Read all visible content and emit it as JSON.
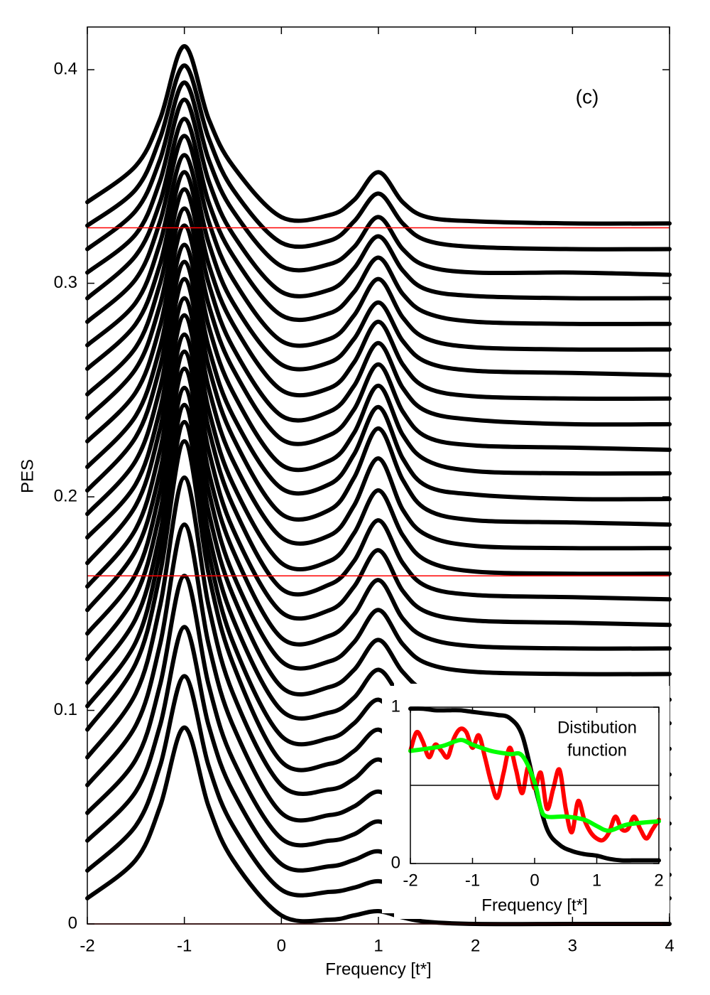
{
  "chart_data": [
    {
      "type": "line",
      "xlabel": "Frequency [t*]",
      "ylabel": "PES",
      "annotation": "(c)",
      "xlim": [
        -2,
        4
      ],
      "ylim": [
        0,
        0.42
      ],
      "xticks": [
        -2,
        -1,
        0,
        1,
        2,
        3,
        4
      ],
      "yticks": [
        0,
        0.1,
        0.2,
        0.3,
        0.4
      ],
      "color": "#000000",
      "hlines": [
        0,
        0.163,
        0.326
      ],
      "hline_color": "#ff0000",
      "x": [
        -2,
        -1.5,
        -1.25,
        -1,
        -0.75,
        -0.5,
        0,
        0.5,
        0.75,
        1,
        1.25,
        1.5,
        2,
        3,
        4
      ],
      "series": [
        {
          "values": [
            0.012,
            0.03,
            0.055,
            0.092,
            0.055,
            0.03,
            0.004,
            0.002,
            0.004,
            0.006,
            0.003,
            0.001,
            0,
            0,
            0
          ]
        },
        {
          "values": [
            0.025,
            0.046,
            0.074,
            0.116,
            0.074,
            0.046,
            0.016,
            0.015,
            0.017,
            0.02,
            0.016,
            0.013,
            0.012,
            0.012,
            0.012
          ]
        },
        {
          "values": [
            0.039,
            0.062,
            0.093,
            0.139,
            0.093,
            0.062,
            0.028,
            0.027,
            0.03,
            0.034,
            0.028,
            0.025,
            0.024,
            0.023,
            0.023
          ]
        },
        {
          "values": [
            0.052,
            0.077,
            0.112,
            0.163,
            0.112,
            0.077,
            0.04,
            0.039,
            0.042,
            0.048,
            0.041,
            0.037,
            0.036,
            0.035,
            0.035
          ]
        },
        {
          "values": [
            0.065,
            0.093,
            0.131,
            0.187,
            0.131,
            0.093,
            0.052,
            0.051,
            0.055,
            0.062,
            0.054,
            0.049,
            0.047,
            0.047,
            0.047
          ]
        },
        {
          "values": [
            0.078,
            0.108,
            0.149,
            0.209,
            0.149,
            0.108,
            0.065,
            0.063,
            0.068,
            0.077,
            0.067,
            0.061,
            0.059,
            0.059,
            0.059
          ]
        },
        {
          "values": [
            0.091,
            0.122,
            0.164,
            0.226,
            0.164,
            0.122,
            0.076,
            0.075,
            0.081,
            0.091,
            0.079,
            0.073,
            0.071,
            0.07,
            0.07
          ]
        },
        {
          "values": [
            0.102,
            0.132,
            0.174,
            0.235,
            0.174,
            0.132,
            0.088,
            0.087,
            0.094,
            0.105,
            0.092,
            0.085,
            0.083,
            0.082,
            0.082
          ]
        },
        {
          "values": [
            0.113,
            0.143,
            0.183,
            0.243,
            0.183,
            0.143,
            0.1,
            0.099,
            0.106,
            0.119,
            0.105,
            0.097,
            0.095,
            0.094,
            0.094
          ]
        },
        {
          "values": [
            0.124,
            0.154,
            0.193,
            0.251,
            0.193,
            0.154,
            0.111,
            0.111,
            0.119,
            0.133,
            0.118,
            0.109,
            0.106,
            0.106,
            0.105
          ]
        },
        {
          "values": [
            0.136,
            0.164,
            0.203,
            0.26,
            0.203,
            0.164,
            0.123,
            0.123,
            0.132,
            0.147,
            0.131,
            0.122,
            0.118,
            0.117,
            0.117
          ]
        },
        {
          "values": [
            0.147,
            0.175,
            0.212,
            0.268,
            0.212,
            0.175,
            0.134,
            0.135,
            0.145,
            0.161,
            0.143,
            0.134,
            0.13,
            0.129,
            0.129
          ]
        },
        {
          "values": [
            0.158,
            0.185,
            0.222,
            0.276,
            0.222,
            0.185,
            0.146,
            0.147,
            0.158,
            0.175,
            0.156,
            0.146,
            0.142,
            0.141,
            0.14
          ]
        },
        {
          "values": [
            0.169,
            0.196,
            0.232,
            0.285,
            0.232,
            0.196,
            0.157,
            0.159,
            0.17,
            0.189,
            0.169,
            0.158,
            0.154,
            0.153,
            0.152
          ]
        },
        {
          "values": [
            0.181,
            0.206,
            0.241,
            0.293,
            0.241,
            0.206,
            0.169,
            0.17,
            0.183,
            0.203,
            0.182,
            0.17,
            0.165,
            0.164,
            0.164
          ]
        },
        {
          "values": [
            0.192,
            0.217,
            0.251,
            0.302,
            0.251,
            0.217,
            0.181,
            0.182,
            0.196,
            0.218,
            0.194,
            0.182,
            0.177,
            0.176,
            0.176
          ]
        },
        {
          "values": [
            0.203,
            0.228,
            0.261,
            0.31,
            0.261,
            0.228,
            0.192,
            0.194,
            0.209,
            0.232,
            0.208,
            0.194,
            0.189,
            0.188,
            0.187
          ]
        },
        {
          "values": [
            0.214,
            0.238,
            0.27,
            0.318,
            0.27,
            0.238,
            0.204,
            0.206,
            0.22,
            0.242,
            0.218,
            0.205,
            0.201,
            0.199,
            0.199
          ]
        },
        {
          "values": [
            0.226,
            0.249,
            0.28,
            0.327,
            0.28,
            0.249,
            0.215,
            0.217,
            0.23,
            0.252,
            0.229,
            0.217,
            0.212,
            0.211,
            0.211
          ]
        },
        {
          "values": [
            0.237,
            0.26,
            0.29,
            0.335,
            0.29,
            0.26,
            0.227,
            0.229,
            0.241,
            0.262,
            0.24,
            0.228,
            0.224,
            0.223,
            0.222
          ]
        },
        {
          "values": [
            0.248,
            0.27,
            0.3,
            0.344,
            0.3,
            0.27,
            0.238,
            0.24,
            0.252,
            0.272,
            0.251,
            0.24,
            0.236,
            0.234,
            0.234
          ]
        },
        {
          "values": [
            0.26,
            0.281,
            0.309,
            0.352,
            0.309,
            0.281,
            0.25,
            0.251,
            0.263,
            0.282,
            0.262,
            0.251,
            0.247,
            0.246,
            0.246
          ]
        },
        {
          "values": [
            0.271,
            0.291,
            0.319,
            0.36,
            0.319,
            0.291,
            0.262,
            0.263,
            0.274,
            0.291,
            0.273,
            0.263,
            0.259,
            0.258,
            0.257
          ]
        },
        {
          "values": [
            0.282,
            0.302,
            0.329,
            0.369,
            0.329,
            0.302,
            0.273,
            0.274,
            0.285,
            0.302,
            0.284,
            0.274,
            0.27,
            0.269,
            0.269
          ]
        },
        {
          "values": [
            0.293,
            0.313,
            0.338,
            0.377,
            0.338,
            0.313,
            0.285,
            0.286,
            0.296,
            0.312,
            0.295,
            0.286,
            0.282,
            0.281,
            0.281
          ]
        },
        {
          "values": [
            0.305,
            0.323,
            0.348,
            0.386,
            0.348,
            0.323,
            0.296,
            0.297,
            0.307,
            0.322,
            0.306,
            0.297,
            0.294,
            0.293,
            0.293
          ]
        },
        {
          "values": [
            0.316,
            0.334,
            0.358,
            0.394,
            0.358,
            0.334,
            0.308,
            0.309,
            0.317,
            0.331,
            0.316,
            0.308,
            0.305,
            0.305,
            0.304
          ]
        },
        {
          "values": [
            0.327,
            0.344,
            0.368,
            0.402,
            0.368,
            0.344,
            0.319,
            0.32,
            0.329,
            0.342,
            0.328,
            0.32,
            0.317,
            0.316,
            0.316
          ]
        },
        {
          "values": [
            0.338,
            0.355,
            0.377,
            0.411,
            0.377,
            0.355,
            0.331,
            0.332,
            0.339,
            0.352,
            0.338,
            0.331,
            0.329,
            0.328,
            0.328
          ]
        }
      ]
    },
    {
      "type": "line",
      "xlabel": "Frequency [t*]",
      "annotation": [
        "Distibution",
        "function"
      ],
      "xlim": [
        -2,
        2
      ],
      "ylim": [
        0,
        1
      ],
      "xticks": [
        -2,
        -1,
        0,
        1,
        2
      ],
      "yticks": [
        0,
        1
      ],
      "hlines": [
        0.5
      ],
      "hline_color": "#000000",
      "series": [
        {
          "color": "#000000",
          "x": [
            -2,
            -1.8,
            -1.6,
            -1.4,
            -1.2,
            -1,
            -0.8,
            -0.6,
            -0.4,
            -0.2,
            0,
            0.2,
            0.4,
            0.6,
            0.8,
            1,
            1.2,
            1.4,
            1.6,
            1.8,
            2
          ],
          "values": [
            0.99,
            0.99,
            0.98,
            0.98,
            0.98,
            0.97,
            0.96,
            0.95,
            0.93,
            0.82,
            0.5,
            0.22,
            0.12,
            0.08,
            0.06,
            0.05,
            0.03,
            0.02,
            0.02,
            0.02,
            0.02
          ]
        },
        {
          "color": "#ff0000",
          "x": [
            -2,
            -1.9,
            -1.8,
            -1.7,
            -1.6,
            -1.5,
            -1.4,
            -1.3,
            -1.2,
            -1.1,
            -1,
            -0.9,
            -0.8,
            -0.7,
            -0.6,
            -0.5,
            -0.4,
            -0.3,
            -0.2,
            -0.1,
            0,
            0.1,
            0.2,
            0.3,
            0.4,
            0.5,
            0.6,
            0.7,
            0.8,
            0.9,
            1,
            1.1,
            1.2,
            1.3,
            1.4,
            1.5,
            1.6,
            1.7,
            1.8,
            1.9,
            2
          ],
          "values": [
            0.72,
            0.84,
            0.78,
            0.68,
            0.76,
            0.72,
            0.68,
            0.8,
            0.86,
            0.84,
            0.74,
            0.82,
            0.68,
            0.52,
            0.42,
            0.58,
            0.74,
            0.6,
            0.45,
            0.62,
            0.48,
            0.58,
            0.35,
            0.48,
            0.6,
            0.35,
            0.2,
            0.4,
            0.28,
            0.2,
            0.16,
            0.15,
            0.2,
            0.3,
            0.22,
            0.22,
            0.3,
            0.22,
            0.16,
            0.22,
            0.28
          ]
        },
        {
          "color": "#00ff00",
          "x": [
            -2,
            -1.5,
            -1.2,
            -1,
            -0.7,
            -0.4,
            -0.2,
            0,
            0.1,
            0.2,
            0.5,
            0.8,
            1,
            1.2,
            1.5,
            2
          ],
          "values": [
            0.72,
            0.75,
            0.79,
            0.76,
            0.72,
            0.7,
            0.69,
            0.52,
            0.35,
            0.3,
            0.3,
            0.28,
            0.24,
            0.21,
            0.25,
            0.27
          ]
        }
      ]
    }
  ]
}
